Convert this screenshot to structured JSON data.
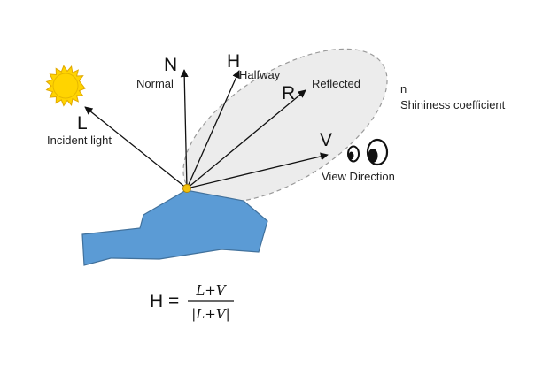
{
  "diagram": {
    "vectors": {
      "L": {
        "letter": "L",
        "caption": "Incident light"
      },
      "N": {
        "letter": "N",
        "caption": "Normal"
      },
      "H": {
        "letter": "H",
        "caption": "Halfway"
      },
      "R": {
        "letter": "R",
        "caption": "Reflected"
      },
      "V": {
        "letter": "V",
        "caption": "View Direction"
      }
    },
    "shininess": {
      "symbol": "n",
      "caption": "Shininess coefficient"
    },
    "formula": {
      "lhs": "H =",
      "numerator": "L+V",
      "denominator": "|L+V|"
    },
    "colors": {
      "surface": "#5b9bd5",
      "surface_edge": "#41719c",
      "lobe": "#ececec",
      "sun": "#ffd400",
      "point": "#f4c20d"
    }
  }
}
